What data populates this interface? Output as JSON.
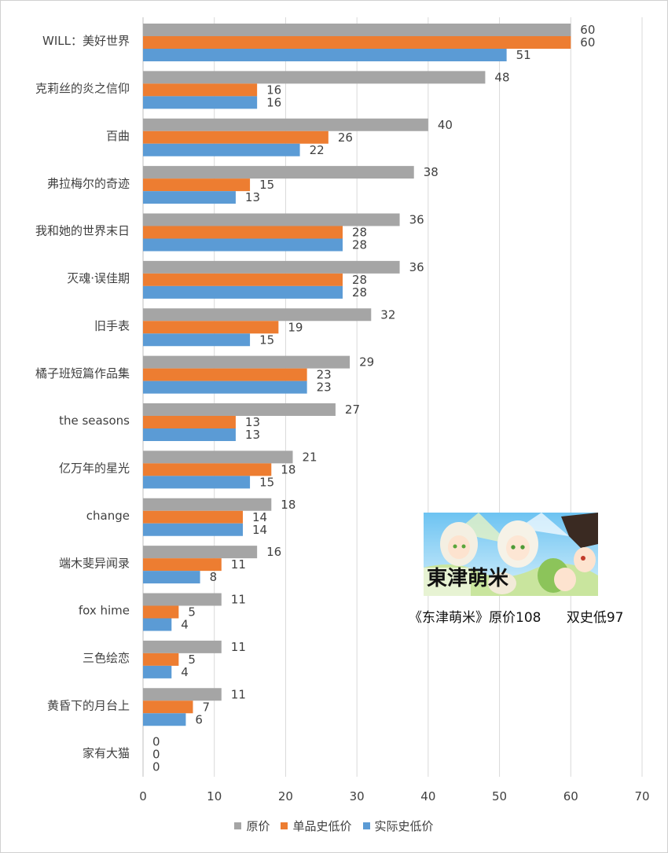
{
  "chart_data": {
    "type": "bar",
    "orientation": "horizontal",
    "categories": [
      "WILL：美好世界",
      "克莉丝的炎之信仰",
      "百曲",
      "弗拉梅尔的奇迹",
      "我和她的世界末日",
      "灭魂·误佳期",
      "旧手表",
      "橘子班短篇作品集",
      "the seasons",
      "亿万年的星光",
      "change",
      "端木斐异闻录",
      "fox hime",
      "三色绘恋",
      "黄昏下的月台上",
      "家有大猫"
    ],
    "series": [
      {
        "name": "原价",
        "color": "#A5A5A5",
        "values": [
          60,
          48,
          40,
          38,
          36,
          36,
          32,
          29,
          27,
          21,
          18,
          16,
          11,
          11,
          11,
          0
        ]
      },
      {
        "name": "单品史低价",
        "color": "#ED7D31",
        "values": [
          60,
          16,
          26,
          15,
          28,
          28,
          19,
          23,
          13,
          18,
          14,
          11,
          5,
          5,
          7,
          0
        ]
      },
      {
        "name": "实际史低价",
        "color": "#5B9BD5",
        "values": [
          51,
          16,
          22,
          13,
          28,
          28,
          15,
          23,
          13,
          15,
          14,
          8,
          4,
          4,
          6,
          0
        ]
      }
    ],
    "xlim": [
      0,
      70
    ],
    "xticks": [
      "0",
      "10",
      "20",
      "30",
      "40",
      "50",
      "60",
      "70"
    ],
    "grid": true,
    "legend_position": "bottom"
  },
  "inset": {
    "logo_text": "東津萌米",
    "caption": "《东津萌米》原价108      双史低97"
  },
  "colors": {
    "gridline": "#d9d9d9",
    "axis": "#bfbfbf",
    "text": "#404040",
    "sky": "#8fd0f5",
    "grass": "#b9dc8a"
  }
}
